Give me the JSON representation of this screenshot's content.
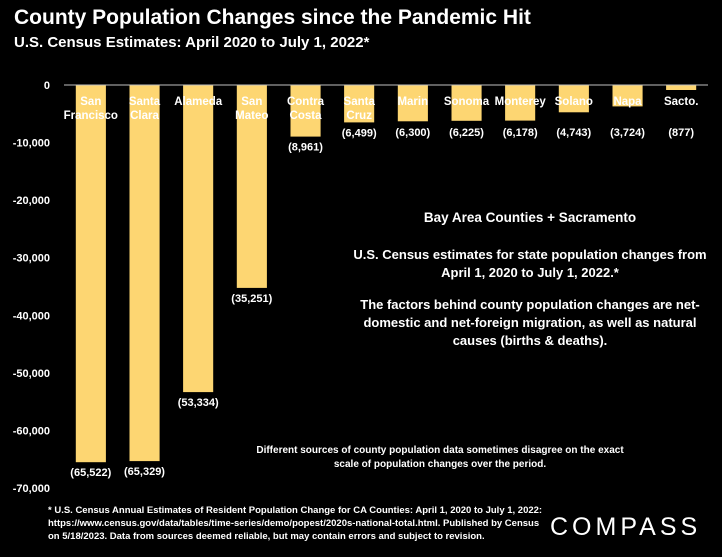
{
  "chart_data": {
    "type": "bar",
    "title": "County Population Changes since the Pandemic Hit",
    "subtitle": "U.S. Census Estimates: April 2020 to July 1, 2022*",
    "categories": [
      [
        "San",
        "Francisco"
      ],
      [
        "Santa",
        "Clara"
      ],
      [
        "Alameda"
      ],
      [
        "San",
        "Mateo"
      ],
      [
        "Contra",
        "Costa"
      ],
      [
        "Santa",
        "Cruz"
      ],
      [
        "Marin"
      ],
      [
        "Sonoma"
      ],
      [
        "Monterey"
      ],
      [
        "Solano"
      ],
      [
        "Napa"
      ],
      [
        "Sacto."
      ]
    ],
    "values": [
      -65522,
      -65329,
      -53334,
      -35251,
      -8961,
      -6499,
      -6300,
      -6225,
      -6178,
      -4743,
      -3724,
      -877
    ],
    "data_labels": [
      "(65,522)",
      "(65,329)",
      "(53,334)",
      "(35,251)",
      "(8,961)",
      "(6,499)",
      "(6,300)",
      "(6,225)",
      "(6,178)",
      "(4,743)",
      "(3,724)",
      "(877)"
    ],
    "yticks": [
      0,
      -10000,
      -20000,
      -30000,
      -40000,
      -50000,
      -60000,
      -70000
    ],
    "ytick_labels": [
      "0",
      "-10,000",
      "-20,000",
      "-30,000",
      "-40,000",
      "-50,000",
      "-60,000",
      "-70,000"
    ],
    "ylim": [
      -70000,
      0
    ],
    "bar_color": "#fdd672",
    "grid": false,
    "xlabel": "",
    "ylabel": ""
  },
  "notes": {
    "heading": "Bay Area Counties + Sacramento",
    "line1": "U.S. Census estimates for state population changes from April 1, 2020 to July 1, 2022.*",
    "line2": "The factors behind county population changes are net-domestic and net-foreign migration, as well as natural causes (births & deaths).",
    "disclaimer": "Different sources of county population data sometimes disagree on the exact scale of population changes over the period."
  },
  "footnote": "* U.S. Census Annual Estimates of Resident Population Change for CA Counties: April 1, 2020 to July 1, 2022: https://www.census.gov/data/tables/time-series/demo/popest/2020s-national-total.html.   Published by Census on 5/18/2023.  Data from sources deemed reliable, but may contain errors and subject to revision.",
  "logo_text": "COMPASS"
}
